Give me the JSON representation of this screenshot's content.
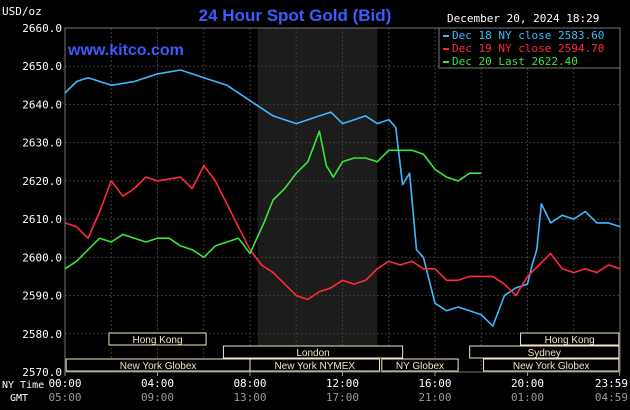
{
  "header": {
    "units": "USD/oz",
    "title": "24 Hour Spot Gold (Bid)",
    "date": "December 20, 2024 18:29",
    "website": "www.kitco.com"
  },
  "legend": [
    {
      "label": "Dec 18 NY close 2583.60",
      "color": "#3fb8ff"
    },
    {
      "label": "Dec 19 NY close 2594.70",
      "color": "#ff2b3b"
    },
    {
      "label": "Dec 20 Last 2622.40",
      "color": "#38e63c"
    }
  ],
  "axis": {
    "row1_label": "NY Time",
    "row2_label": "GMT",
    "ny_ticks": [
      "00:00",
      "04:00",
      "08:00",
      "12:00",
      "16:00",
      "20:00",
      "23:59"
    ],
    "gmt_ticks": [
      "05:00",
      "09:00",
      "13:00",
      "17:00",
      "21:00",
      "01:00",
      "04:59"
    ]
  },
  "sessions": [
    {
      "label": "Hong Kong"
    },
    {
      "label": "London"
    },
    {
      "label": "New York Globex"
    },
    {
      "label": "New York NYMEX"
    },
    {
      "label": "NY Globex"
    },
    {
      "label": "Hong Kong"
    },
    {
      "label": "Sydney"
    },
    {
      "label": "New York Globex"
    }
  ],
  "colors": {
    "background": "#000000",
    "grid": "#3a3a3a",
    "highlight": "#1c1c1c",
    "title": "#3d5cff",
    "axis_text": "#ffffff",
    "session_box": "#f2e6c4"
  },
  "chart_data": {
    "type": "line",
    "ylim": [
      2570,
      2660
    ],
    "yticks": [
      2570.0,
      2580.0,
      2590.0,
      2600.0,
      2610.0,
      2620.0,
      2630.0,
      2640.0,
      2650.0,
      2660.0
    ],
    "xlim_hours": [
      0,
      24
    ],
    "series": [
      {
        "name": "Dec 18 NY close 2583.60",
        "color": "#3fb8ff",
        "x": [
          0,
          0.5,
          1,
          2,
          3,
          4,
          5,
          5.5,
          6,
          7,
          8,
          9,
          10,
          11,
          11.5,
          12,
          12.5,
          13,
          13.5,
          14,
          14.3,
          14.6,
          14.9,
          15.2,
          15.5,
          16,
          16.5,
          17,
          17.5,
          18,
          18.5,
          19,
          19.5,
          20,
          20.2,
          20.4,
          20.6,
          21,
          21.5,
          22,
          22.5,
          23,
          23.5,
          24
        ],
        "y": [
          2643,
          2646,
          2647,
          2645,
          2646,
          2648,
          2649,
          2648,
          2647,
          2645,
          2641,
          2637,
          2635,
          2637,
          2638,
          2635,
          2636,
          2637,
          2635,
          2636,
          2634,
          2619,
          2622,
          2602,
          2600,
          2588,
          2586,
          2587,
          2586,
          2585,
          2582,
          2590,
          2592,
          2593,
          2598,
          2602,
          2614,
          2609,
          2611,
          2610,
          2612,
          2609,
          2609,
          2608
        ]
      },
      {
        "name": "Dec 19 NY close 2594.70",
        "color": "#ff2b3b",
        "x": [
          0,
          0.5,
          1,
          1.5,
          2,
          2.5,
          3,
          3.5,
          4,
          5,
          5.5,
          6,
          6.5,
          7,
          7.5,
          8,
          8.5,
          9,
          9.5,
          10,
          10.5,
          11,
          11.5,
          12,
          12.5,
          13,
          13.5,
          14,
          14.5,
          15,
          15.5,
          16,
          16.5,
          17,
          17.5,
          18,
          18.5,
          19,
          19.5,
          20,
          20.5,
          21,
          21.5,
          22,
          22.5,
          23,
          23.5,
          24
        ],
        "y": [
          2609,
          2608,
          2605,
          2612,
          2620,
          2616,
          2618,
          2621,
          2620,
          2621,
          2618,
          2624,
          2620,
          2614,
          2608,
          2602,
          2598,
          2596,
          2593,
          2590,
          2589,
          2591,
          2592,
          2594,
          2593,
          2594,
          2597,
          2599,
          2598,
          2599,
          2597,
          2597,
          2594,
          2594,
          2595,
          2595,
          2595,
          2593,
          2590,
          2595,
          2598,
          2601,
          2597,
          2596,
          2597,
          2596,
          2598,
          2597
        ]
      },
      {
        "name": "Dec 20 Last 2622.40",
        "color": "#38e63c",
        "x": [
          0,
          0.5,
          1,
          1.5,
          2,
          2.5,
          3,
          3.5,
          4,
          4.5,
          5,
          5.5,
          6,
          6.5,
          7,
          7.5,
          8,
          8.3,
          8.6,
          9,
          9.5,
          10,
          10.5,
          11,
          11.3,
          11.6,
          12,
          12.5,
          13,
          13.5,
          14,
          14.5,
          15,
          15.5,
          16,
          16.5,
          17,
          17.5,
          18
        ],
        "y": [
          2597,
          2599,
          2602,
          2605,
          2604,
          2606,
          2605,
          2604,
          2605,
          2605,
          2603,
          2602,
          2600,
          2603,
          2604,
          2605,
          2601,
          2605,
          2609,
          2615,
          2618,
          2622,
          2625,
          2633,
          2624,
          2621,
          2625,
          2626,
          2626,
          2625,
          2628,
          2628,
          2628,
          2627,
          2623,
          2621,
          2620,
          2622,
          2622
        ]
      }
    ]
  }
}
